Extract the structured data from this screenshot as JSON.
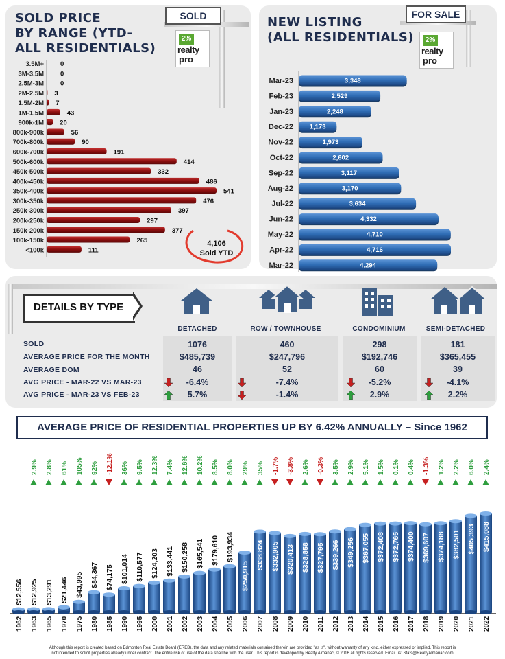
{
  "sold_panel": {
    "title_lines": [
      "SOLD PRICE",
      "BY RANGE (YTD-",
      "ALL RESIDENTIALS)"
    ],
    "sign_label": "SOLD",
    "total_value": "4,106",
    "total_label": "Sold YTD"
  },
  "listing_panel": {
    "title_lines": [
      "NEW LISTING",
      "(ALL RESIDENTIALS)"
    ],
    "sign_label": "FOR SALE"
  },
  "logo": {
    "badge": "2%",
    "line1": "realty",
    "line2": "pro"
  },
  "details": {
    "header": "DETAILS BY TYPE",
    "types": [
      "DETACHED",
      "ROW / TOWNHOUSE",
      "CONDOMINIUM",
      "SEMI-DETACHED"
    ],
    "row_labels": [
      "SOLD",
      "AVERAGE PRICE FOR THE MONTH",
      "AVERAGE DOM",
      "AVG PRICE - MAR-22 VS MAR-23",
      "AVG PRICE - MAR-23 VS FEB-23"
    ],
    "values": [
      [
        "1076",
        "$485,739",
        "46",
        "-6.4%",
        "5.7%"
      ],
      [
        "460",
        "$247,796",
        "52",
        "-7.4%",
        "-1.4%"
      ],
      [
        "298",
        "$192,746",
        "60",
        "-5.2%",
        "2.9%"
      ],
      [
        "181",
        "$365,455",
        "39",
        "-4.1%",
        "2.2%"
      ]
    ],
    "trend_yoy": [
      "down",
      "down",
      "down",
      "down"
    ],
    "trend_mom": [
      "up",
      "down",
      "up",
      "up"
    ]
  },
  "banner": "AVERAGE PRICE OF RESIDENTIAL PROPERTIES UP BY 6.42% ANNUALLY – Since 1962",
  "footer_lines": [
    "Although this report is created based on Edmonton Real Estate Board (EREB), the data and any related materials contained therein are provided \"as is\", without warranty of any kind, either expressed or implied.  This report is",
    "not intended to solicit properties already under contract.  The entire risk of use of the data shall be with the user.  This report is developed by Realty Almanac, © 2016 all rights reserved. Email us: Stats@RealtyAlmanac.com"
  ],
  "colors": {
    "red_bar": "#8b0e0e",
    "blue_bar": "#2f6db5",
    "navy": "#1f2d4d",
    "up": "#2e9e3e",
    "down": "#c62020"
  },
  "chart_data": [
    {
      "type": "bar",
      "orientation": "horizontal",
      "title": "SOLD PRICE BY RANGE (YTD- ALL RESIDENTIALS)",
      "categories": [
        "3.5M+",
        "3M-3.5M",
        "2.5M-3M",
        "2M-2.5M",
        "1.5M-2M",
        "1M-1.5M",
        "900k-1M",
        "800k-900k",
        "700k-800k",
        "600k-700k",
        "500k-600k",
        "450k-500k",
        "400k-450k",
        "350k-400k",
        "300k-350k",
        "250k-300k",
        "200k-250k",
        "150k-200k",
        "100k-150k",
        "<100k"
      ],
      "values": [
        0,
        0,
        0,
        3,
        7,
        43,
        20,
        56,
        90,
        191,
        414,
        332,
        486,
        541,
        476,
        397,
        297,
        377,
        265,
        111
      ],
      "labels": [
        "0",
        "0",
        "0",
        "3",
        "7",
        "43",
        "20",
        "56",
        "90",
        "191",
        "414",
        "332",
        "486",
        "541",
        "476",
        "397",
        "297",
        "377",
        "265",
        "111"
      ]
    },
    {
      "type": "bar",
      "orientation": "horizontal",
      "title": "NEW LISTING (ALL RESIDENTIALS)",
      "categories": [
        "Mar-23",
        "Feb-23",
        "Jan-23",
        "Dec-22",
        "Nov-22",
        "Oct-22",
        "Sep-22",
        "Aug-22",
        "Jul-22",
        "Jun-22",
        "May-22",
        "Apr-22",
        "Mar-22"
      ],
      "values": [
        3348,
        2529,
        2248,
        1173,
        1973,
        2602,
        3117,
        3170,
        3634,
        4332,
        4710,
        4716,
        4294
      ],
      "labels": [
        "3,348",
        "2,529",
        "2,248",
        "1,173",
        "1,973",
        "2,602",
        "3,117",
        "3,170",
        "3,634",
        "4,332",
        "4,710",
        "4,716",
        "4,294"
      ]
    },
    {
      "type": "bar",
      "title": "AVERAGE PRICE OF RESIDENTIAL PROPERTIES UP BY 6.42% ANNUALLY – Since 1962",
      "categories": [
        "1962",
        "1963",
        "1965",
        "1970",
        "1975",
        "1980",
        "1985",
        "1990",
        "1995",
        "2000",
        "2001",
        "2002",
        "2003",
        "2004",
        "2005",
        "2006",
        "2007",
        "2008",
        "2009",
        "2010",
        "2011",
        "2012",
        "2013",
        "2014",
        "2015",
        "2016",
        "2017",
        "2018",
        "2019",
        "2020",
        "2021",
        "2022"
      ],
      "values": [
        12556,
        12925,
        13291,
        21446,
        43995,
        84367,
        74175,
        101014,
        110577,
        124203,
        133441,
        150258,
        165541,
        179610,
        193934,
        250915,
        338824,
        332905,
        320413,
        328858,
        327795,
        339266,
        349256,
        367055,
        372408,
        372765,
        374400,
        369607,
        374188,
        382501,
        405393,
        415088
      ],
      "labels": [
        "$12,556",
        "$12,925",
        "$13,291",
        "$21,446",
        "$43,995",
        "$84,367",
        "$74,175",
        "$101,014",
        "$110,577",
        "$124,203",
        "$133,441",
        "$150,258",
        "$165,541",
        "$179,610",
        "$193,934",
        "$250,915",
        "$338,824",
        "$332,905",
        "$320,413",
        "$328,858",
        "$327,795",
        "$339,266",
        "$349,256",
        "$367,055",
        "$372,408",
        "$372,765",
        "$374,400",
        "$369,607",
        "$374,188",
        "$382,501",
        "$405,393",
        "$415,088"
      ],
      "changes": [
        "2.9%",
        "2.8%",
        "61%",
        "105%",
        "92%",
        "-12.1%",
        "36%",
        "9.5%",
        "12.3%",
        "7.4%",
        "12.6%",
        "10.2%",
        "8.5%",
        "8.0%",
        "29%",
        "35%",
        "-1.7%",
        "-3.8%",
        "2.6%",
        "-0.3%",
        "3.5%",
        "2.9%",
        "5.1%",
        "1.5%",
        "0.1%",
        "0.4%",
        "-1.3%",
        "1.2%",
        "2.2%",
        "6.0%",
        "2.4%"
      ],
      "changes_start_index": 1
    }
  ]
}
